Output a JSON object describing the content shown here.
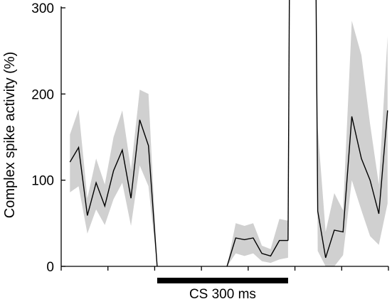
{
  "chart_data": {
    "type": "line",
    "ylabel": "Complex spike activity (%)",
    "xlabel": "",
    "ylim": [
      0,
      300
    ],
    "yticks": [
      0,
      100,
      200,
      300
    ],
    "grid": false,
    "legend": "none",
    "colors": {
      "line": "#000000",
      "band": "#d0d0d0",
      "axis": "#000000"
    },
    "segments": [
      {
        "x": [
          0,
          1,
          2,
          3,
          4,
          5,
          6,
          7,
          8,
          9,
          10
        ],
        "y": [
          121,
          138,
          59,
          97,
          70,
          111,
          135,
          79,
          170,
          140,
          0
        ],
        "lower": [
          86,
          93,
          38,
          66,
          48,
          78,
          97,
          47,
          117,
          93,
          0
        ],
        "upper": [
          153,
          182,
          79,
          125,
          95,
          150,
          181,
          112,
          205,
          200,
          0
        ]
      },
      {
        "x": [
          18,
          19,
          20,
          21,
          22,
          23,
          24,
          25
        ],
        "y": [
          0,
          33,
          31,
          33,
          15,
          12,
          30,
          30
        ],
        "lower": [
          0,
          15,
          12,
          15,
          6,
          4,
          8,
          10
        ],
        "upper": [
          0,
          50,
          47,
          50,
          24,
          20,
          55,
          53
        ]
      },
      {
        "x": [
          25,
          25.15
        ],
        "y": [
          30,
          320
        ],
        "lower": [
          10,
          320
        ],
        "upper": [
          53,
          320
        ]
      },
      {
        "x": [
          28.2,
          28.4,
          29.3,
          30.3,
          31.3,
          32.3,
          33.4,
          34.4,
          35.4,
          36.4
        ],
        "y": [
          320,
          64,
          10,
          42,
          40,
          174,
          125,
          100,
          61,
          181
        ],
        "lower": [
          320,
          18,
          0,
          0,
          13,
          100,
          65,
          35,
          25,
          73
        ],
        "upper": [
          320,
          160,
          40,
          85,
          65,
          285,
          245,
          165,
          95,
          267
        ]
      }
    ],
    "xticks_count": 8,
    "stimulus_bar": {
      "label": "CS 300 ms",
      "start": 10,
      "end": 25
    },
    "xlim": [
      -1,
      36.5
    ]
  }
}
